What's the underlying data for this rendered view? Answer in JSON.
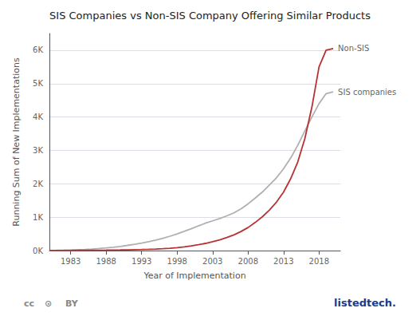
{
  "chart_data": {
    "type": "line",
    "title": "SIS Companies vs Non-SIS Company Offering Similar Products",
    "x_label": "Year of Implementation",
    "y_label": "Running Sum of New Implementations",
    "x": [
      1980,
      1981,
      1982,
      1983,
      1984,
      1985,
      1986,
      1987,
      1988,
      1989,
      1990,
      1991,
      1992,
      1993,
      1994,
      1995,
      1996,
      1997,
      1998,
      1999,
      2000,
      2001,
      2002,
      2003,
      2004,
      2005,
      2006,
      2007,
      2008,
      2009,
      2010,
      2011,
      2012,
      2013,
      2014,
      2015,
      2016,
      2017,
      2018,
      2019,
      2020
    ],
    "series": [
      {
        "name": "SIS companies",
        "color": "#b0b0b0",
        "values": [
          5,
          8,
          12,
          18,
          25,
          35,
          47,
          62,
          80,
          100,
          125,
          155,
          188,
          225,
          268,
          315,
          370,
          430,
          500,
          575,
          655,
          740,
          820,
          890,
          960,
          1040,
          1130,
          1250,
          1400,
          1570,
          1750,
          1960,
          2180,
          2450,
          2770,
          3150,
          3580,
          4000,
          4400,
          4700,
          4750
        ]
      },
      {
        "name": "Non-SIS",
        "color": "#b83232",
        "values": [
          2,
          3,
          4,
          5,
          6,
          7,
          8,
          10,
          12,
          15,
          18,
          22,
          27,
          32,
          38,
          46,
          56,
          70,
          88,
          110,
          140,
          175,
          215,
          265,
          320,
          390,
          470,
          570,
          690,
          840,
          1010,
          1210,
          1450,
          1750,
          2150,
          2650,
          3350,
          4300,
          5500,
          6000,
          6050
        ]
      }
    ],
    "xlim": [
      1980,
      2021
    ],
    "xticks": [
      1983,
      1988,
      1993,
      1998,
      2003,
      2008,
      2013,
      2018
    ],
    "ylim": [
      0,
      6500
    ],
    "yticks": [
      {
        "value": 0,
        "label": "0K"
      },
      {
        "value": 1000,
        "label": "1K"
      },
      {
        "value": 2000,
        "label": "2K"
      },
      {
        "value": 3000,
        "label": "3K"
      },
      {
        "value": 4000,
        "label": "4K"
      },
      {
        "value": 5000,
        "label": "5K"
      },
      {
        "value": 6000,
        "label": "6K"
      }
    ],
    "grid": true,
    "annotations": [
      "cc",
      "⊙",
      "BY",
      "listedtech."
    ]
  }
}
